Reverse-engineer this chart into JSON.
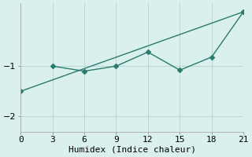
{
  "line1_x": [
    0,
    21
  ],
  "line1_y": [
    -1.5,
    0.08
  ],
  "line2_x": [
    3,
    6,
    9,
    12,
    15,
    18,
    21
  ],
  "line2_y": [
    -1.0,
    -1.1,
    -1.0,
    -0.72,
    -1.08,
    -0.82,
    0.08
  ],
  "color": "#2a7a6f",
  "bg_color": "#daf0ec",
  "xlabel": "Humidex (Indice chaleur)",
  "xlim": [
    0,
    21
  ],
  "ylim": [
    -2.3,
    0.25
  ],
  "xticks": [
    0,
    3,
    6,
    9,
    12,
    15,
    18,
    21
  ],
  "yticks": [
    -2,
    -1
  ],
  "grid_color": "#b8d8d4",
  "line_width": 1.0,
  "marker": "D",
  "marker_size": 3.0,
  "tick_fontsize": 8,
  "xlabel_fontsize": 8
}
